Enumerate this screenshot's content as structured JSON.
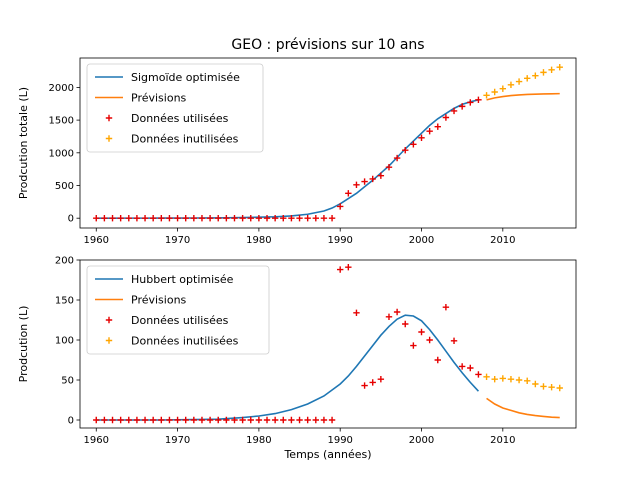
{
  "chart_data": [
    {
      "type": "line",
      "title": "GEO : prévisions sur 10 ans",
      "xlabel": "",
      "ylabel": "Prodcution totale (L)",
      "xlim": [
        1958,
        2019
      ],
      "ylim": [
        -150,
        2450
      ],
      "xticks": [
        1960,
        1970,
        1980,
        1990,
        2000,
        2010
      ],
      "yticks": [
        0,
        500,
        1000,
        1500,
        2000
      ],
      "legend_position": "upper-left",
      "series": [
        {
          "name": "Sigmoïde optimisée",
          "kind": "line",
          "color": "#1f77b4",
          "x": [
            1960,
            1962,
            1964,
            1966,
            1968,
            1970,
            1972,
            1974,
            1976,
            1978,
            1980,
            1982,
            1984,
            1986,
            1988,
            1989,
            1990,
            1991,
            1992,
            1993,
            1994,
            1995,
            1996,
            1997,
            1998,
            1999,
            2000,
            2001,
            2002,
            2003,
            2004,
            2005,
            2006,
            2007
          ],
          "y": [
            0,
            0,
            1,
            1,
            2,
            2,
            3,
            4,
            6,
            10,
            15,
            22,
            35,
            60,
            110,
            155,
            220,
            300,
            380,
            480,
            580,
            690,
            800,
            930,
            1060,
            1180,
            1300,
            1420,
            1520,
            1600,
            1680,
            1740,
            1780,
            1810
          ]
        },
        {
          "name": "Prévisions",
          "kind": "line",
          "color": "#ff7f0e",
          "x": [
            2008,
            2009,
            2010,
            2011,
            2012,
            2013,
            2014,
            2015,
            2016,
            2017
          ],
          "y": [
            1810,
            1840,
            1860,
            1875,
            1885,
            1892,
            1897,
            1900,
            1903,
            1905
          ]
        },
        {
          "name": "Données utilisées",
          "kind": "scatter",
          "marker": "+",
          "color": "#e60000",
          "x": [
            1960,
            1961,
            1962,
            1963,
            1964,
            1965,
            1966,
            1967,
            1968,
            1969,
            1970,
            1971,
            1972,
            1973,
            1974,
            1975,
            1976,
            1977,
            1978,
            1979,
            1980,
            1981,
            1982,
            1983,
            1984,
            1985,
            1986,
            1987,
            1988,
            1989,
            1990,
            1991,
            1992,
            1993,
            1994,
            1995,
            1996,
            1997,
            1998,
            1999,
            2000,
            2001,
            2002,
            2003,
            2004,
            2005,
            2006,
            2007
          ],
          "y": [
            0,
            0,
            0,
            0,
            0,
            0,
            0,
            0,
            0,
            0,
            0,
            0,
            0,
            0,
            0,
            0,
            0,
            0,
            0,
            0,
            0,
            0,
            0,
            0,
            0,
            0,
            0,
            0,
            0,
            0,
            180,
            380,
            510,
            560,
            600,
            650,
            780,
            920,
            1040,
            1130,
            1230,
            1330,
            1400,
            1540,
            1640,
            1710,
            1770,
            1810
          ]
        },
        {
          "name": "Données inutilisées",
          "kind": "scatter",
          "marker": "+",
          "color": "#ffa500",
          "x": [
            2008,
            2009,
            2010,
            2011,
            2012,
            2013,
            2014,
            2015,
            2016,
            2017
          ],
          "y": [
            1880,
            1930,
            1980,
            2040,
            2090,
            2140,
            2180,
            2230,
            2270,
            2310
          ]
        }
      ]
    },
    {
      "type": "line",
      "title": "",
      "xlabel": "Temps (années)",
      "ylabel": "Prodcution (L)",
      "xlim": [
        1958,
        2019
      ],
      "ylim": [
        -10,
        200
      ],
      "xticks": [
        1960,
        1970,
        1980,
        1990,
        2000,
        2010
      ],
      "yticks": [
        0,
        50,
        100,
        150,
        200
      ],
      "legend_position": "upper-left",
      "series": [
        {
          "name": "Hubbert optimisée",
          "kind": "line",
          "color": "#1f77b4",
          "x": [
            1960,
            1964,
            1968,
            1972,
            1975,
            1978,
            1980,
            1982,
            1984,
            1986,
            1988,
            1990,
            1991,
            1992,
            1993,
            1994,
            1995,
            1996,
            1997,
            1998,
            1999,
            2000,
            2001,
            2002,
            2003,
            2004,
            2005,
            2006,
            2007
          ],
          "y": [
            0,
            0,
            0,
            0.5,
            1,
            3,
            5,
            8,
            13,
            20,
            30,
            45,
            55,
            67,
            80,
            93,
            106,
            117,
            126,
            131,
            130,
            124,
            113,
            100,
            86,
            72,
            59,
            47,
            36
          ]
        },
        {
          "name": "Prévisions",
          "kind": "line",
          "color": "#ff7f0e",
          "x": [
            2008,
            2009,
            2010,
            2011,
            2012,
            2013,
            2014,
            2015,
            2016,
            2017
          ],
          "y": [
            27,
            20,
            15,
            12,
            9,
            7,
            5.5,
            4.5,
            3.5,
            3
          ]
        },
        {
          "name": "Données utilisées",
          "kind": "scatter",
          "marker": "+",
          "color": "#e60000",
          "x": [
            1960,
            1961,
            1962,
            1963,
            1964,
            1965,
            1966,
            1967,
            1968,
            1969,
            1970,
            1971,
            1972,
            1973,
            1974,
            1975,
            1976,
            1977,
            1978,
            1979,
            1980,
            1981,
            1982,
            1983,
            1984,
            1985,
            1986,
            1987,
            1988,
            1989,
            1990,
            1991,
            1992,
            1993,
            1994,
            1995,
            1996,
            1997,
            1998,
            1999,
            2000,
            2001,
            2002,
            2003,
            2004,
            2005,
            2006,
            2007
          ],
          "y": [
            0,
            0,
            0,
            0,
            0,
            0,
            0,
            0,
            0,
            0,
            0,
            0,
            0,
            0,
            0,
            0,
            0,
            0,
            0,
            0,
            0,
            0,
            0,
            0,
            0,
            0,
            0,
            0,
            0,
            0,
            188,
            191,
            134,
            43,
            47,
            51,
            129,
            135,
            120,
            93,
            110,
            100,
            75,
            141,
            99,
            67,
            65,
            57
          ]
        },
        {
          "name": "Données inutilisées",
          "kind": "scatter",
          "marker": "+",
          "color": "#ffa500",
          "x": [
            2008,
            2009,
            2010,
            2011,
            2012,
            2013,
            2014,
            2015,
            2016,
            2017
          ],
          "y": [
            54,
            51,
            52,
            51,
            50,
            49,
            45,
            42,
            41,
            40
          ]
        }
      ]
    }
  ]
}
